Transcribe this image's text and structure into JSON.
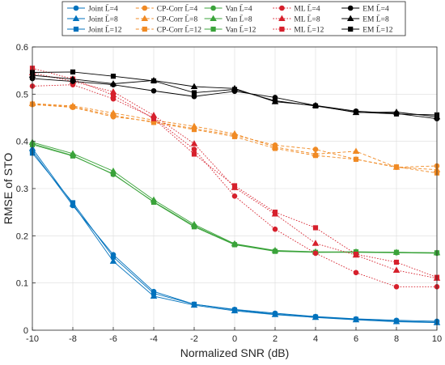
{
  "chart_data": {
    "type": "line",
    "xlabel": "Normalized SNR (dB)",
    "ylabel": "RMSE of STO",
    "xlim": [
      -10,
      10
    ],
    "ylim": [
      0,
      0.6
    ],
    "x": [
      -10,
      -8,
      -6,
      -4,
      -2,
      0,
      2,
      4,
      6,
      8,
      10
    ],
    "x_ticks": [
      "-10",
      "-8",
      "-6",
      "-4",
      "-2",
      "0",
      "2",
      "4",
      "6",
      "8",
      "10"
    ],
    "y_ticks": [
      "0",
      "0.1",
      "0.2",
      "0.3",
      "0.4",
      "0.5",
      "0.6"
    ],
    "grid": true,
    "legend_position": "top",
    "series": [
      {
        "name": "Joint L̄=4",
        "color": "#0072BD",
        "dash": "solid",
        "marker": "circle",
        "values": [
          0.38,
          0.264,
          0.16,
          0.082,
          0.055,
          0.044,
          0.036,
          0.029,
          0.024,
          0.021,
          0.019
        ]
      },
      {
        "name": "Joint L̄=8",
        "color": "#0072BD",
        "dash": "solid",
        "marker": "triangle",
        "values": [
          0.385,
          0.267,
          0.146,
          0.072,
          0.053,
          0.041,
          0.033,
          0.027,
          0.022,
          0.018,
          0.016
        ]
      },
      {
        "name": "Joint L̄=12",
        "color": "#0072BD",
        "dash": "solid",
        "marker": "square",
        "values": [
          0.375,
          0.27,
          0.155,
          0.078,
          0.055,
          0.043,
          0.034,
          0.028,
          0.023,
          0.019,
          0.017
        ]
      },
      {
        "name": "CP-Corr L̄=4",
        "color": "#F08A24",
        "dash": "dashed",
        "marker": "circle",
        "values": [
          0.478,
          0.472,
          0.452,
          0.442,
          0.427,
          0.413,
          0.392,
          0.383,
          0.362,
          0.345,
          0.348
        ]
      },
      {
        "name": "CP-Corr L̄=8",
        "color": "#F08A24",
        "dash": "dashed",
        "marker": "triangle",
        "values": [
          0.48,
          0.475,
          0.46,
          0.445,
          0.432,
          0.416,
          0.388,
          0.373,
          0.379,
          0.345,
          0.34
        ]
      },
      {
        "name": "CP-Corr L̄=12",
        "color": "#F08A24",
        "dash": "dashed",
        "marker": "square",
        "values": [
          0.479,
          0.473,
          0.455,
          0.44,
          0.425,
          0.41,
          0.385,
          0.37,
          0.362,
          0.346,
          0.333
        ]
      },
      {
        "name": "Van L̄=4",
        "color": "#3AA33A",
        "dash": "solid",
        "marker": "circle",
        "values": [
          0.395,
          0.37,
          0.33,
          0.272,
          0.221,
          0.182,
          0.168,
          0.165,
          0.165,
          0.164,
          0.163
        ]
      },
      {
        "name": "Van L̄=8",
        "color": "#3AA33A",
        "dash": "solid",
        "marker": "triangle",
        "values": [
          0.398,
          0.374,
          0.337,
          0.276,
          0.224,
          0.183,
          0.169,
          0.166,
          0.166,
          0.165,
          0.164
        ]
      },
      {
        "name": "Van L̄=12",
        "color": "#3AA33A",
        "dash": "solid",
        "marker": "square",
        "values": [
          0.393,
          0.369,
          0.331,
          0.271,
          0.219,
          0.181,
          0.167,
          0.165,
          0.166,
          0.165,
          0.164
        ]
      },
      {
        "name": "ML L̄=4",
        "color": "#D6202C",
        "dash": "dotted",
        "marker": "circle",
        "values": [
          0.517,
          0.52,
          0.49,
          0.45,
          0.383,
          0.284,
          0.214,
          0.163,
          0.122,
          0.092,
          0.092
        ]
      },
      {
        "name": "ML L̄=8",
        "color": "#D6202C",
        "dash": "dotted",
        "marker": "triangle",
        "values": [
          0.545,
          0.527,
          0.505,
          0.455,
          0.395,
          0.302,
          0.246,
          0.184,
          0.159,
          0.127,
          0.11
        ]
      },
      {
        "name": "ML L̄=12",
        "color": "#D6202C",
        "dash": "dotted",
        "marker": "square",
        "values": [
          0.555,
          0.532,
          0.498,
          0.448,
          0.373,
          0.306,
          0.25,
          0.217,
          0.161,
          0.144,
          0.112
        ]
      },
      {
        "name": "EM L̄=4",
        "color": "#000000",
        "dash": "solid",
        "marker": "circle",
        "values": [
          0.533,
          0.527,
          0.52,
          0.507,
          0.495,
          0.506,
          0.493,
          0.476,
          0.464,
          0.459,
          0.448
        ]
      },
      {
        "name": "EM L̄=8",
        "color": "#000000",
        "dash": "solid",
        "marker": "triangle",
        "values": [
          0.54,
          0.532,
          0.522,
          0.529,
          0.516,
          0.512,
          0.484,
          0.476,
          0.461,
          0.462,
          0.452
        ]
      },
      {
        "name": "EM L̄=12",
        "color": "#000000",
        "dash": "solid",
        "marker": "square",
        "values": [
          0.546,
          0.547,
          0.538,
          0.528,
          0.503,
          0.51,
          0.486,
          0.475,
          0.462,
          0.458,
          0.456
        ]
      }
    ]
  }
}
